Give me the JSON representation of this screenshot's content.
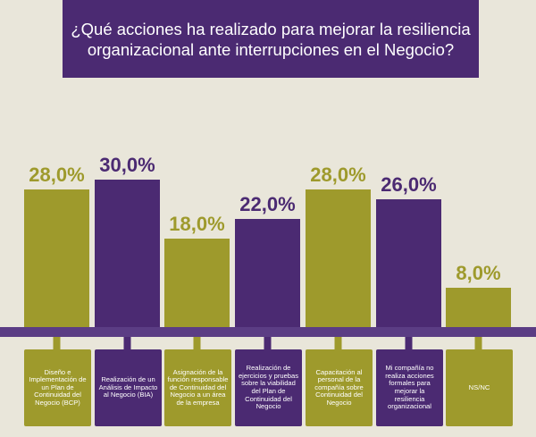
{
  "header": {
    "title": "¿Qué acciones ha realizado para mejorar la resiliencia\norganizacional  ante interrupciones en el Negocio?"
  },
  "colors": {
    "olive": "#9e9a2c",
    "purple": "#4b2a72",
    "background": "#e9e6da",
    "axis_band": "#5b3d84"
  },
  "chart_data": {
    "type": "bar",
    "title": "¿Qué acciones ha realizado para mejorar la resiliencia organizacional  ante interrupciones en el Negocio?",
    "xlabel": "",
    "ylabel": "",
    "ylim": [
      0,
      30
    ],
    "grid": false,
    "legend": "none",
    "categories": [
      "Diseño e Implementación de un Plan de Continuidad del Negocio (BCP)",
      "Realización de un Análisis de Impacto al Negocio (BIA)",
      "Asignación de la función responsable de Continuidad del Negocio a un área de la empresa",
      "Realización de ejercicios y pruebas sobre la viabilidad del Plan de Continuidad del Negocio",
      "Capacitación al personal de la compañía sobre Continuidad del Negocio",
      "Mi compañía no realiza acciones formales para mejorar la resiliencia organizacional",
      "NS/NC"
    ],
    "values": [
      28.0,
      30.0,
      18.0,
      22.0,
      28.0,
      26.0,
      8.0
    ],
    "value_labels": [
      "28,0%",
      "30,0%",
      "18,0%",
      "22,0%",
      "28,0%",
      "26,0%",
      "8,0%"
    ],
    "bar_colors": [
      "#9e9a2c",
      "#4b2a72",
      "#9e9a2c",
      "#4b2a72",
      "#9e9a2c",
      "#4b2a72",
      "#9e9a2c"
    ]
  }
}
